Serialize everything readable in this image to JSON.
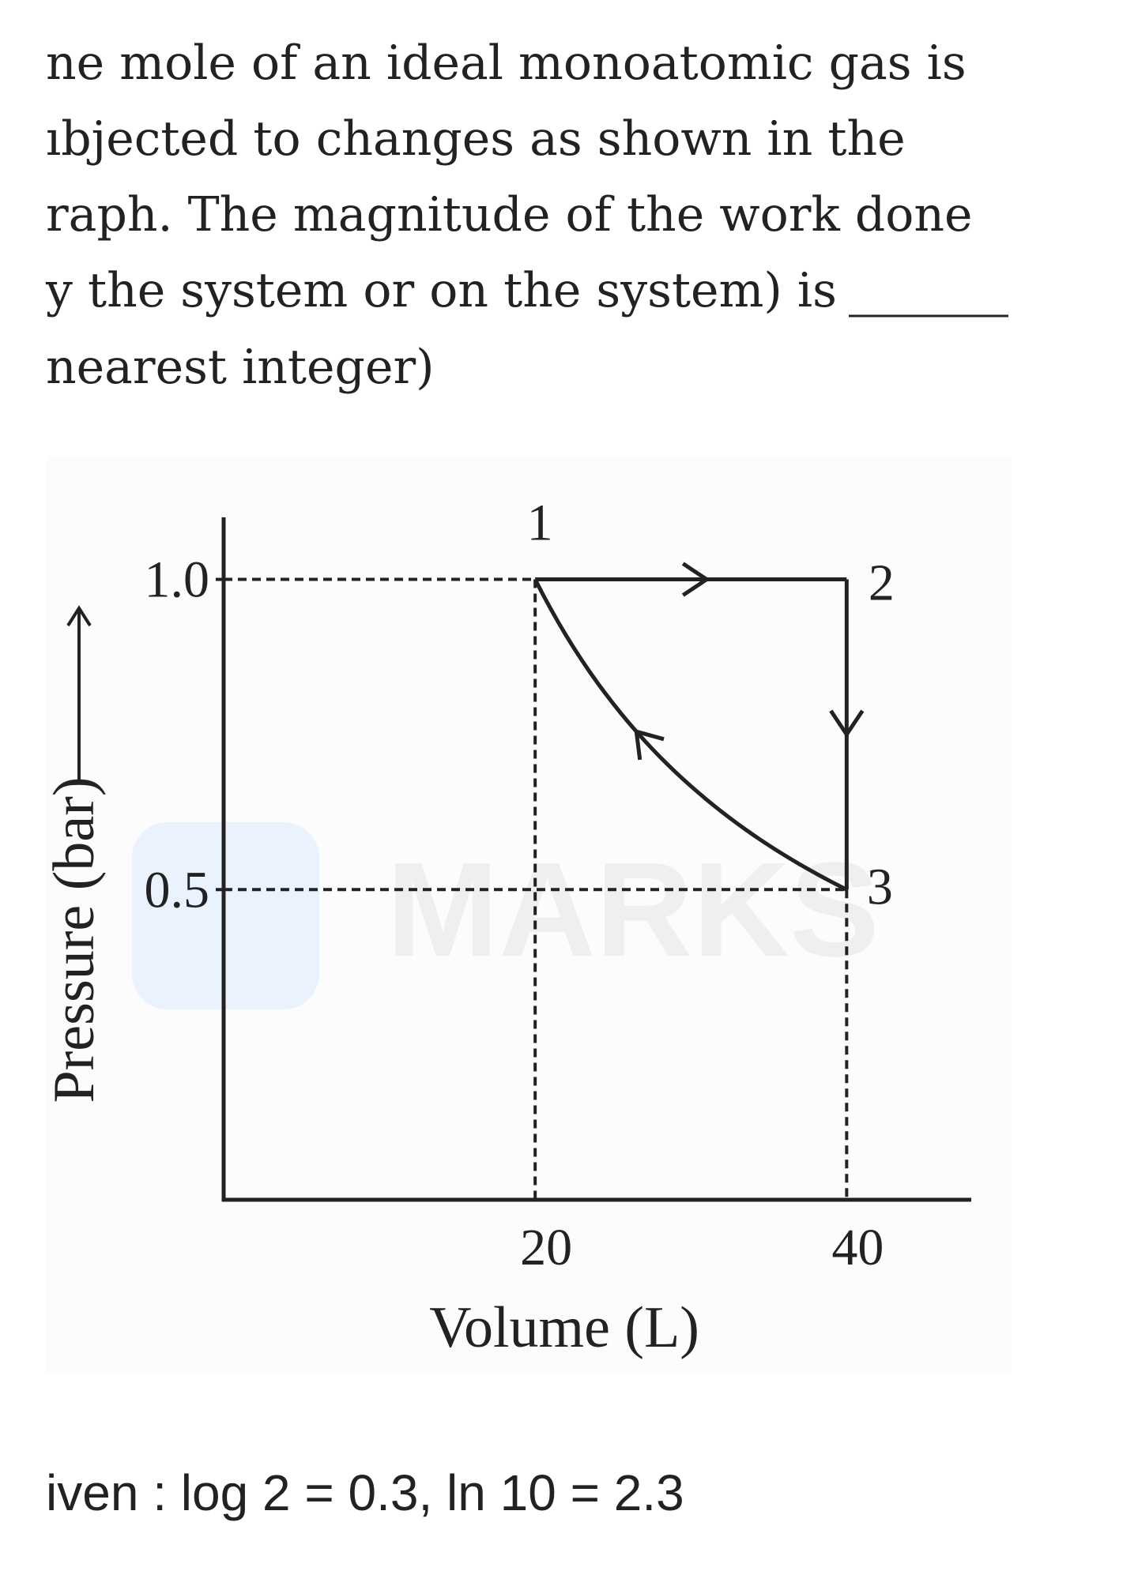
{
  "question": {
    "lines": [
      "ne mole of an ideal monoatomic gas is",
      "ıbjected to changes as shown in the",
      "raph. The magnitude of the work done",
      "y the system or on the system) is",
      "nearest integer)"
    ]
  },
  "chart_data": {
    "type": "pv-cycle",
    "xlabel": "Volume (L)",
    "ylabel": "Pressure (bar)",
    "xlim": [
      0,
      48
    ],
    "ylim": [
      0,
      1.1
    ],
    "xticks": [
      20,
      40
    ],
    "yticks": [
      {
        "value": 1.0,
        "label": "1.0"
      },
      0.5
    ],
    "points": {
      "x": [
        20,
        40,
        40
      ],
      "y": [
        1.0,
        1.0,
        0.5
      ],
      "labels": [
        "1",
        "2",
        "3"
      ]
    },
    "color": "#222222",
    "watermark": "MARKS"
  },
  "given": "iven : log 2 = 0.3, ln 10 = 2.3"
}
